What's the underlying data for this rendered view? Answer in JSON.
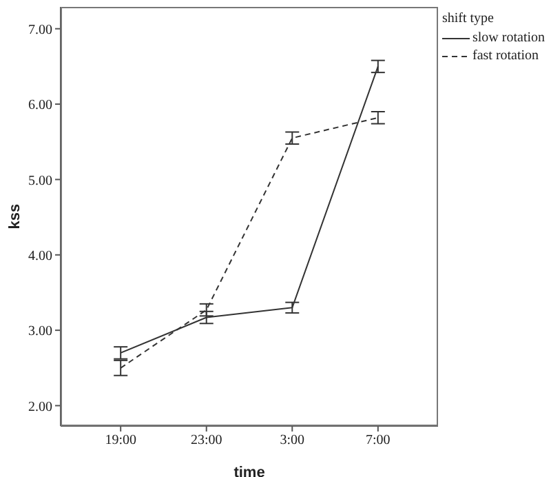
{
  "chart_data": {
    "type": "line",
    "xlabel": "time",
    "ylabel": "kss",
    "legend_title": "shift type",
    "categories": [
      "19:00",
      "23:00",
      "3:00",
      "7:00"
    ],
    "series": [
      {
        "name": "slow rotation",
        "color": "#333333",
        "line_style": "solid",
        "values": [
          2.7,
          3.17,
          3.3,
          6.5
        ],
        "errors": [
          0.08,
          0.08,
          0.07,
          0.08
        ]
      },
      {
        "name": "fast rotation",
        "color": "#333333",
        "line_style": "dashed",
        "values": [
          2.5,
          3.27,
          5.55,
          5.82
        ],
        "errors": [
          0.1,
          0.08,
          0.08,
          0.08
        ]
      }
    ],
    "ylim": [
      1.73,
      7.29
    ],
    "yticks": [
      {
        "value": 2,
        "label": "2.00"
      },
      {
        "value": 3,
        "label": "3.00"
      },
      {
        "value": 4,
        "label": "4.00"
      },
      {
        "value": 5,
        "label": "5.00"
      },
      {
        "value": 6,
        "label": "6.00"
      },
      {
        "value": 7,
        "label": "7.00"
      }
    ],
    "grid": false,
    "legend": "top right",
    "marker": "none"
  }
}
